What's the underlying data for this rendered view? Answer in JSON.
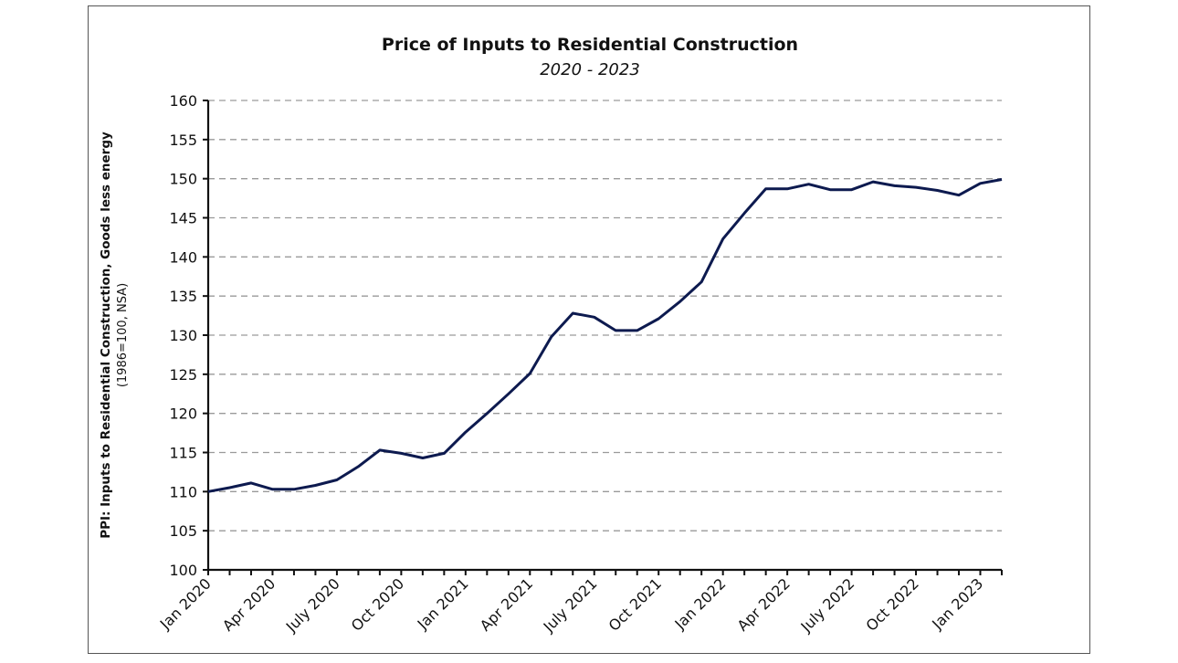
{
  "chart_data": {
    "type": "line",
    "title": "Price of Inputs to Residential Construction",
    "subtitle": "2020 - 2023",
    "ylabel": "PPI: Inputs to Residential Construction, Goods less energy",
    "ylabel_note": "(1986=100, NSA)",
    "xlabel": "",
    "ylim": [
      100,
      160
    ],
    "yticks": [
      100,
      105,
      110,
      115,
      120,
      125,
      130,
      135,
      140,
      145,
      150,
      155,
      160
    ],
    "grid": true,
    "legend": "none",
    "x_tick_labels": [
      "Jan 2020",
      "Apr 2020",
      "July 2020",
      "Oct 2020",
      "Jan 2021",
      "Apr 2021",
      "July 2021",
      "Oct 2021",
      "Jan 2022",
      "Apr 2022",
      "July 2022",
      "Oct 2022",
      "Jan 2023"
    ],
    "x_tick_label_step_months": 3,
    "x": [
      "Jan 2020",
      "Feb 2020",
      "Mar 2020",
      "Apr 2020",
      "May 2020",
      "Jun 2020",
      "Jul 2020",
      "Aug 2020",
      "Sep 2020",
      "Oct 2020",
      "Nov 2020",
      "Dec 2020",
      "Jan 2021",
      "Feb 2021",
      "Mar 2021",
      "Apr 2021",
      "May 2021",
      "Jun 2021",
      "Jul 2021",
      "Aug 2021",
      "Sep 2021",
      "Oct 2021",
      "Nov 2021",
      "Dec 2021",
      "Jan 2022",
      "Feb 2022",
      "Mar 2022",
      "Apr 2022",
      "May 2022",
      "Jun 2022",
      "Jul 2022",
      "Aug 2022",
      "Sep 2022",
      "Oct 2022",
      "Nov 2022",
      "Dec 2022",
      "Jan 2023",
      "Feb 2023"
    ],
    "series": [
      {
        "name": "PPI: Inputs to Residential Construction, Goods less energy",
        "color": "#0d1a4f",
        "values": [
          110.0,
          110.5,
          111.1,
          110.3,
          110.3,
          110.8,
          111.5,
          113.2,
          115.3,
          114.9,
          114.3,
          114.9,
          117.6,
          120.0,
          122.5,
          125.1,
          129.8,
          132.8,
          132.3,
          130.6,
          130.6,
          132.1,
          134.3,
          136.8,
          142.3,
          145.6,
          148.7,
          148.7,
          149.3,
          148.6,
          148.6,
          149.6,
          149.1,
          148.9,
          148.5,
          147.9,
          149.4,
          149.9
        ]
      }
    ]
  }
}
